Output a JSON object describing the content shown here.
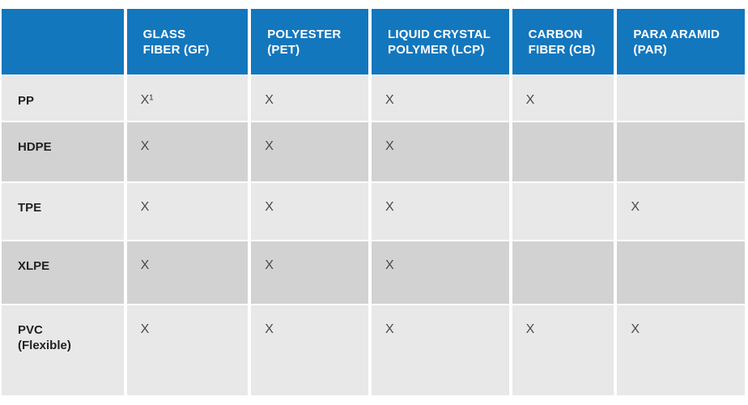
{
  "theme": {
    "header_bg": "#1377bd",
    "header_text_color": "#ffffff",
    "row_light_bg": "#e8e8e8",
    "row_dark_bg": "#d2d2d2",
    "row_label_color": "#231f20",
    "mark_color": "#4a4a4a",
    "separator_color": "#ffffff"
  },
  "table": {
    "corner_label": "",
    "columns": [
      {
        "id": "gf",
        "label": "GLASS FIBER (GF)"
      },
      {
        "id": "pet",
        "label": "POLYESTER (PET)"
      },
      {
        "id": "lcp",
        "label": "LIQUID CRYSTAL POLYMER (LCP)"
      },
      {
        "id": "cb",
        "label": "CARBON FIBER (CB)"
      },
      {
        "id": "par",
        "label": "PARA ARAMID (PAR)"
      }
    ],
    "rows": [
      {
        "label": "PP",
        "cells": [
          "X¹",
          "X",
          "X",
          "X",
          ""
        ]
      },
      {
        "label": "HDPE",
        "cells": [
          "X",
          "X",
          "X",
          "",
          ""
        ]
      },
      {
        "label": "TPE",
        "cells": [
          "X",
          "X",
          "X",
          "",
          "X"
        ]
      },
      {
        "label": "XLPE",
        "cells": [
          "X",
          "X",
          "X",
          "",
          ""
        ]
      },
      {
        "label": "PVC (Flexible)",
        "cells": [
          "X",
          "X",
          "X",
          "X",
          "X"
        ]
      }
    ]
  }
}
